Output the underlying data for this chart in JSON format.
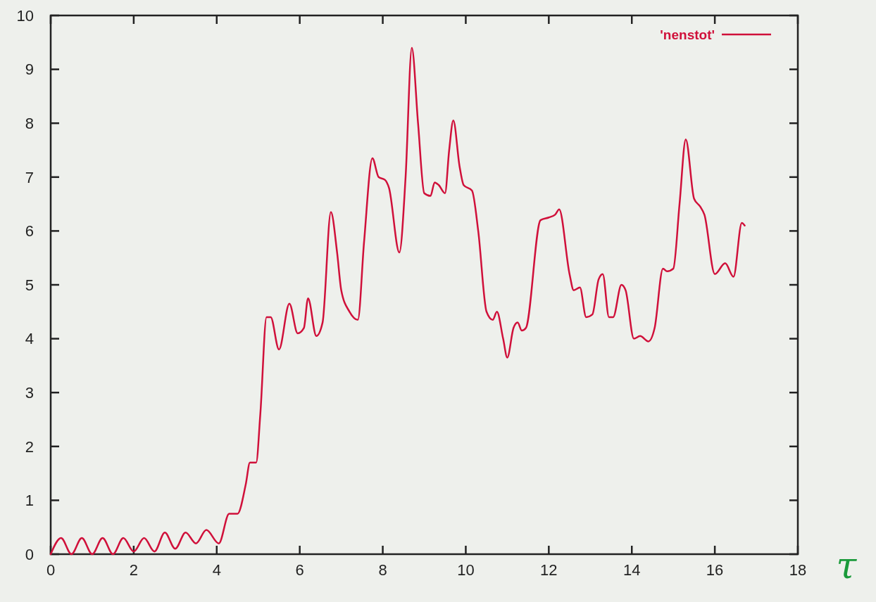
{
  "chart_data": {
    "type": "line",
    "xlabel": "τ",
    "xlim": [
      0,
      18
    ],
    "ylim": [
      0,
      10
    ],
    "xticks": [
      0,
      2,
      4,
      6,
      8,
      10,
      12,
      14,
      16,
      18
    ],
    "yticks": [
      0,
      1,
      2,
      3,
      4,
      5,
      6,
      7,
      8,
      9,
      10
    ],
    "grid": false,
    "legend": "top right",
    "marker": "none",
    "line_style": "solid",
    "series": [
      {
        "name": "'nenstot'",
        "color": "#d0103a",
        "x": [
          0,
          0.25,
          0.5,
          0.75,
          1.0,
          1.25,
          1.5,
          1.75,
          2.0,
          2.25,
          2.5,
          2.75,
          3.0,
          3.25,
          3.5,
          3.75,
          4.05,
          4.3,
          4.5,
          4.7,
          4.8,
          4.95,
          5.05,
          5.2,
          5.3,
          5.5,
          5.75,
          5.95,
          6.1,
          6.2,
          6.4,
          6.55,
          6.75,
          6.9,
          7.0,
          7.2,
          7.4,
          7.55,
          7.75,
          7.9,
          8.05,
          8.15,
          8.4,
          8.55,
          8.7,
          8.85,
          9.0,
          9.15,
          9.25,
          9.35,
          9.5,
          9.6,
          9.7,
          9.85,
          9.95,
          10.15,
          10.3,
          10.5,
          10.65,
          10.75,
          10.9,
          11.0,
          11.15,
          11.25,
          11.35,
          11.45,
          11.8,
          12.0,
          12.15,
          12.25,
          12.5,
          12.6,
          12.75,
          12.9,
          13.05,
          13.2,
          13.3,
          13.45,
          13.55,
          13.75,
          13.85,
          14.05,
          14.2,
          14.4,
          14.55,
          14.75,
          14.85,
          15.0,
          15.15,
          15.3,
          15.5,
          15.65,
          15.75,
          16.0,
          16.25,
          16.45,
          16.65,
          16.72
        ],
        "values": [
          0,
          0.3,
          0,
          0.3,
          0,
          0.3,
          0,
          0.3,
          0.05,
          0.3,
          0.05,
          0.4,
          0.1,
          0.4,
          0.2,
          0.45,
          0.2,
          0.75,
          0.75,
          1.3,
          1.7,
          1.7,
          2.6,
          4.4,
          4.4,
          3.8,
          4.65,
          4.1,
          4.2,
          4.75,
          4.05,
          4.3,
          6.35,
          5.6,
          4.9,
          4.5,
          4.35,
          5.8,
          7.35,
          7.0,
          6.95,
          6.8,
          5.6,
          7.0,
          9.4,
          8.0,
          6.7,
          6.65,
          6.9,
          6.85,
          6.7,
          7.5,
          8.05,
          7.2,
          6.85,
          6.75,
          6.0,
          4.5,
          4.35,
          4.5,
          4.0,
          3.65,
          4.2,
          4.3,
          4.15,
          4.2,
          6.2,
          6.25,
          6.3,
          6.4,
          5.2,
          4.9,
          4.95,
          4.4,
          4.45,
          5.1,
          5.2,
          4.4,
          4.4,
          5.0,
          4.9,
          4.0,
          4.05,
          3.95,
          4.2,
          5.3,
          5.25,
          5.3,
          6.5,
          7.7,
          6.6,
          6.45,
          6.3,
          5.2,
          5.4,
          5.15,
          6.15,
          6.1
        ]
      }
    ]
  }
}
